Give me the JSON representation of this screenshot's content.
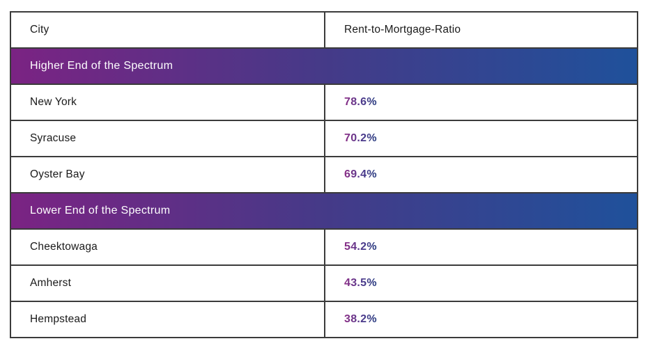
{
  "chart_data": {
    "type": "table",
    "columns": [
      "City",
      "Rent-to-Mortgage-Ratio"
    ],
    "sections": [
      {
        "header": "Higher End of the Spectrum",
        "rows": [
          {
            "city": "New York",
            "ratio": "78.6%"
          },
          {
            "city": "Syracuse",
            "ratio": "70.2%"
          },
          {
            "city": "Oyster Bay",
            "ratio": "69.4%"
          }
        ]
      },
      {
        "header": "Lower End of the Spectrum",
        "rows": [
          {
            "city": "Cheektowaga",
            "ratio": "54.2%"
          },
          {
            "city": "Amherst",
            "ratio": "43.5%"
          },
          {
            "city": "Hempstead",
            "ratio": "38.2%"
          }
        ]
      }
    ],
    "layout": {
      "grid": "off",
      "legend": "none"
    }
  },
  "colors": {
    "section_gradient_start": "#7b2383",
    "section_gradient_mid": "#453a88",
    "section_gradient_end": "#1f519b",
    "value_gradient_start": "#8b2c85",
    "value_gradient_end": "#243a7e",
    "border": "#3b3b3b",
    "text": "#1a1a1a",
    "section_text": "#ffffff",
    "background": "#ffffff"
  }
}
